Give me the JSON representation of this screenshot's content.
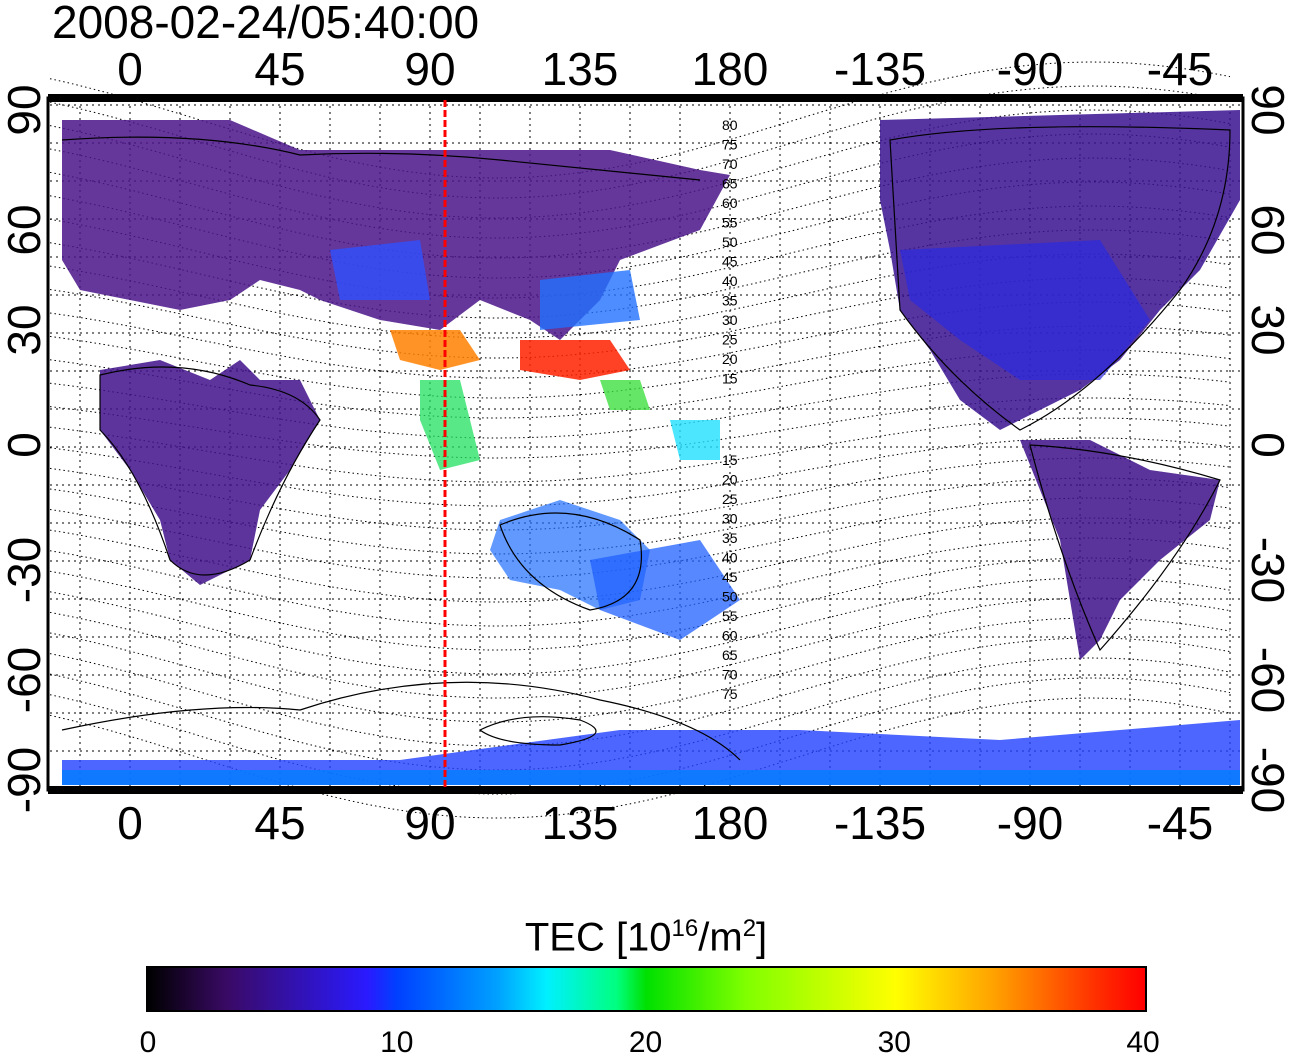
{
  "timestamp": "2008-02-24/05:40:00",
  "axes": {
    "top_ticks": [
      "0",
      "45",
      "90",
      "135",
      "180",
      "-135",
      "-90",
      "-45"
    ],
    "bottom_ticks": [
      "0",
      "45",
      "90",
      "135",
      "180",
      "-135",
      "-90",
      "-45"
    ],
    "left_ticks": [
      "90",
      "60",
      "30",
      "0",
      "-30",
      "-60",
      "-90"
    ],
    "right_ticks": [
      "90",
      "60",
      "30",
      "0",
      "-30",
      "-60",
      "-90"
    ]
  },
  "contour_labels_north": [
    "80",
    "75",
    "70",
    "65",
    "60",
    "55",
    "50",
    "45",
    "40",
    "35",
    "30",
    "25",
    "20",
    "15"
  ],
  "contour_labels_south": [
    "15",
    "20",
    "25",
    "30",
    "35",
    "40",
    "45",
    "50",
    "55",
    "60",
    "65",
    "70",
    "75"
  ],
  "colorbar": {
    "title_main": "TEC  [10",
    "title_sup1": "16",
    "title_mid": "/m",
    "title_sup2": "2",
    "title_end": "]",
    "ticks": [
      "0",
      "10",
      "20",
      "30",
      "40"
    ],
    "min": 0,
    "max": 40
  },
  "marker_longitude": 95,
  "colors": {
    "low": "#3a0a66",
    "mid": "#0040ff",
    "high": "#ff0000",
    "marker": "#ff0000"
  }
}
